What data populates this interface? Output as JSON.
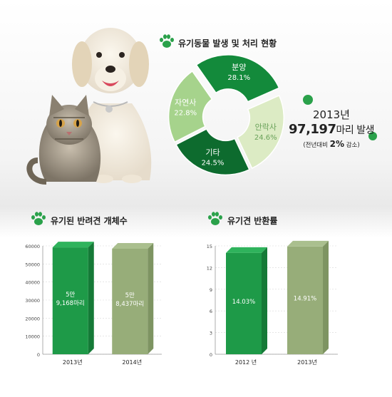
{
  "top": {
    "title": "유기동물 발생 및 처리 현황",
    "year": "2013년",
    "count_value": "97,197",
    "count_unit": "마리 발생",
    "change_prefix": "(전년대비 ",
    "change_value": "2%",
    "change_suffix": " 감소)"
  },
  "chart_data": [
    {
      "type": "pie",
      "title": "유기동물 발생 및 처리 현황",
      "slices": [
        {
          "label": "분양",
          "value": 28.1,
          "value_label": "28.1%",
          "color": "#138a3b"
        },
        {
          "label": "안락사",
          "value": 24.6,
          "value_label": "24.6%",
          "color": "#dcebc4"
        },
        {
          "label": "기타",
          "value": 24.5,
          "value_label": "24.5%",
          "color": "#0d6b2e"
        },
        {
          "label": "자연사",
          "value": 22.8,
          "value_label": "22.8%",
          "color": "#a6d38c"
        }
      ]
    },
    {
      "type": "bar",
      "title": "유기된 반려견 개체수",
      "categories": [
        "2013년",
        "2014년"
      ],
      "values": [
        59168,
        58437
      ],
      "value_labels": [
        [
          "5만",
          "9,168마리"
        ],
        [
          "5만",
          "8,437마리"
        ]
      ],
      "colors": [
        "#1e9a48",
        "#97ad79"
      ],
      "ylim": [
        0,
        60000
      ],
      "yticks": [
        "0",
        "10000",
        "20000",
        "30000",
        "40000",
        "50000",
        "60000"
      ],
      "grid": true
    },
    {
      "type": "bar",
      "title": "유기견 반환률",
      "categories": [
        "2012 년",
        "2013년"
      ],
      "values": [
        14.03,
        14.91
      ],
      "value_labels": [
        [
          "14.03%"
        ],
        [
          "14.91%"
        ]
      ],
      "colors": [
        "#1e9a48",
        "#97ad79"
      ],
      "ylim": [
        0,
        15
      ],
      "yticks": [
        "0",
        "3",
        "6",
        "9",
        "12",
        "15"
      ],
      "grid": true
    }
  ],
  "colors": {
    "accent": "#2aa14a",
    "dark_green": "#0d6b2e",
    "olive": "#97ad79"
  },
  "icons": {
    "section_marker": "paw-icon",
    "decor": "green-dot"
  }
}
